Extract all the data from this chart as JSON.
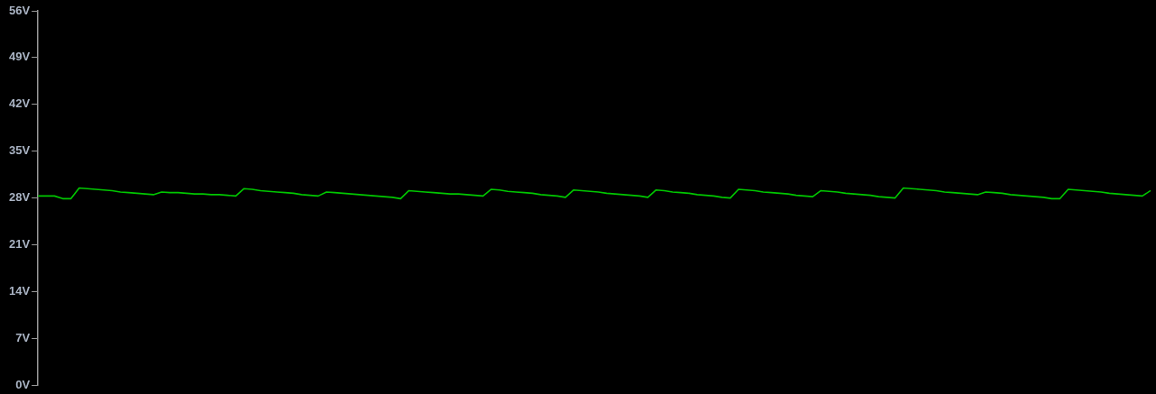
{
  "chart_data": {
    "type": "line",
    "categories": [
      null,
      null,
      null,
      null,
      null,
      null,
      null,
      null,
      null,
      null,
      null,
      null,
      null,
      null,
      null,
      null,
      null,
      null,
      null,
      null,
      null,
      null,
      null,
      null,
      null,
      null,
      null,
      null,
      null,
      null,
      null,
      null,
      null,
      null,
      null,
      null,
      null,
      null,
      null,
      null,
      null,
      null,
      null,
      null,
      null,
      null,
      null,
      null,
      null,
      null,
      null,
      null,
      null,
      null,
      null,
      null,
      null,
      null,
      null,
      null,
      null,
      null,
      null,
      null,
      null,
      null,
      null,
      null,
      null,
      null,
      null,
      null,
      null,
      null,
      null,
      null,
      null,
      null,
      null,
      null,
      null,
      null,
      null,
      null,
      null,
      null,
      null,
      null,
      null,
      null,
      null,
      null,
      null,
      null,
      null,
      null,
      null,
      null,
      null,
      null,
      null,
      null,
      null,
      null,
      null,
      null,
      null,
      null,
      null,
      null,
      null,
      null,
      null,
      null,
      null,
      null,
      null,
      null,
      null,
      null,
      null,
      null,
      null,
      null,
      null,
      null,
      null,
      null,
      null,
      null,
      null,
      null,
      null,
      null,
      null,
      null
    ],
    "series": [
      {
        "color": "#00c800",
        "values": [
          28.3,
          28.3,
          28.3,
          27.9,
          27.9,
          29.5,
          29.4,
          29.3,
          29.2,
          29.1,
          28.9,
          28.8,
          28.7,
          28.6,
          28.5,
          28.9,
          28.8,
          28.8,
          28.7,
          28.6,
          28.6,
          28.5,
          28.5,
          28.4,
          28.3,
          29.4,
          29.3,
          29.1,
          29.0,
          28.9,
          28.8,
          28.7,
          28.5,
          28.4,
          28.3,
          28.9,
          28.8,
          28.7,
          28.6,
          28.5,
          28.4,
          28.3,
          28.2,
          28.1,
          27.9,
          29.1,
          29.0,
          28.9,
          28.8,
          28.7,
          28.6,
          28.6,
          28.5,
          28.4,
          28.3,
          29.3,
          29.2,
          29.0,
          28.9,
          28.8,
          28.7,
          28.5,
          28.4,
          28.3,
          28.1,
          29.2,
          29.1,
          29.0,
          28.9,
          28.7,
          28.6,
          28.5,
          28.4,
          28.3,
          28.1,
          29.2,
          29.1,
          28.9,
          28.8,
          28.7,
          28.5,
          28.4,
          28.3,
          28.1,
          28.0,
          29.3,
          29.2,
          29.1,
          28.9,
          28.8,
          28.7,
          28.6,
          28.4,
          28.3,
          28.2,
          29.1,
          29.0,
          28.9,
          28.7,
          28.6,
          28.5,
          28.4,
          28.2,
          28.1,
          28.0,
          29.5,
          29.4,
          29.3,
          29.2,
          29.1,
          28.9,
          28.8,
          28.7,
          28.6,
          28.5,
          28.9,
          28.8,
          28.7,
          28.5,
          28.4,
          28.3,
          28.2,
          28.1,
          27.9,
          27.9,
          29.3,
          29.2,
          29.1,
          29.0,
          28.9,
          28.7,
          28.6,
          28.5,
          28.4,
          28.3,
          29.1
        ]
      }
    ],
    "ylim": [
      0,
      56
    ],
    "yticks": [
      {
        "value": 0,
        "label": "0V"
      },
      {
        "value": 7,
        "label": "7V"
      },
      {
        "value": 14,
        "label": "14V"
      },
      {
        "value": 21,
        "label": "21V"
      },
      {
        "value": 28,
        "label": "28V"
      },
      {
        "value": 35,
        "label": "35V"
      },
      {
        "value": 42,
        "label": "42V"
      },
      {
        "value": 49,
        "label": "49V"
      },
      {
        "value": 56,
        "label": "56V"
      }
    ],
    "tick_labels": "y",
    "grid": false,
    "legend": false,
    "marker": "none",
    "line_style": "solid"
  }
}
